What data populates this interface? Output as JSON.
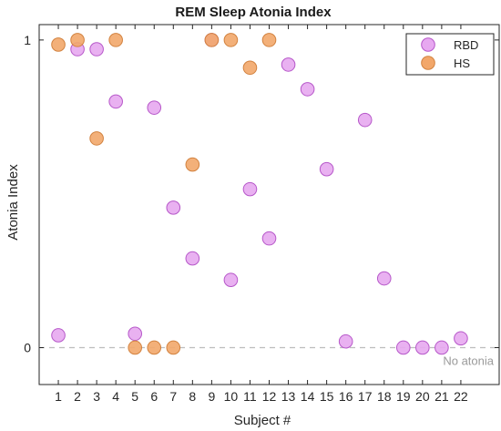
{
  "chart_data": {
    "type": "scatter",
    "title": "REM Sleep Atonia Index",
    "xlabel": "Subject #",
    "ylabel": "Atonia Index",
    "xlim": [
      0,
      24
    ],
    "ylim": [
      -0.12,
      1.05
    ],
    "x_ticks": [
      1,
      2,
      3,
      4,
      5,
      6,
      7,
      8,
      9,
      10,
      11,
      12,
      13,
      14,
      15,
      16,
      17,
      18,
      19,
      20,
      21,
      22
    ],
    "y_ticks": [
      0,
      1
    ],
    "grid": false,
    "legend_position": "top-right",
    "reference_line": {
      "y": 0,
      "style": "dashed",
      "color": "#bdbdbd"
    },
    "annotation": "No atonia",
    "series": [
      {
        "name": "RBD",
        "color": "#e7a8f0",
        "edge": "#b657c9",
        "points": [
          [
            1,
            0.04
          ],
          [
            2,
            0.97
          ],
          [
            3,
            0.97
          ],
          [
            4,
            0.8
          ],
          [
            5,
            0.045
          ],
          [
            6,
            0.78
          ],
          [
            7,
            0.455
          ],
          [
            8,
            0.29
          ],
          [
            9,
            1.0
          ],
          [
            10,
            0.22
          ],
          [
            11,
            0.515
          ],
          [
            12,
            0.355
          ],
          [
            13,
            0.92
          ],
          [
            14,
            0.84
          ],
          [
            15,
            0.58
          ],
          [
            16,
            0.02
          ],
          [
            17,
            0.74
          ],
          [
            18,
            0.225
          ],
          [
            19,
            0.0
          ],
          [
            20,
            0.0
          ],
          [
            21,
            0.0
          ],
          [
            22,
            0.03
          ]
        ]
      },
      {
        "name": "HS",
        "color": "#f2a76a",
        "edge": "#d2823f",
        "points": [
          [
            1,
            0.985
          ],
          [
            2,
            1.0
          ],
          [
            3,
            0.68
          ],
          [
            4,
            1.0
          ],
          [
            5,
            0.0
          ],
          [
            6,
            0.0
          ],
          [
            7,
            0.0
          ],
          [
            8,
            0.595
          ],
          [
            9,
            1.0
          ],
          [
            10,
            1.0
          ],
          [
            11,
            0.91
          ],
          [
            12,
            1.0
          ]
        ]
      }
    ]
  }
}
